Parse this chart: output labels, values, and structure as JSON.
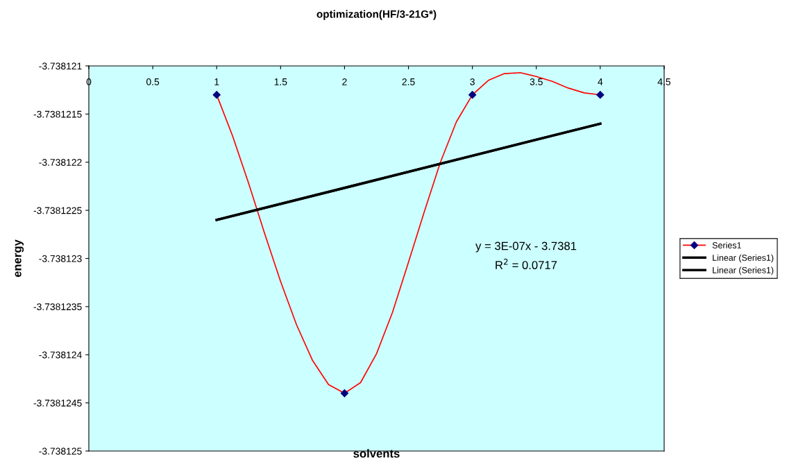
{
  "chart_data": {
    "type": "line",
    "title": "optimization(HF/3-21G*)",
    "xlabel": "solvents",
    "ylabel": "energy",
    "xlim": [
      0,
      4.5
    ],
    "xticks": [
      0,
      0.5,
      1,
      1.5,
      2,
      2.5,
      3,
      3.5,
      4,
      4.5
    ],
    "ylim": [
      -3.738125,
      -3.738121
    ],
    "yticks": [
      -3.738125,
      -3.7381245,
      -3.738124,
      -3.7381235,
      -3.738123,
      -3.7381225,
      -3.738122,
      -3.7381215,
      -3.738121
    ],
    "series": [
      {
        "name": "Series1",
        "color": "#ff0000",
        "x": [
          1,
          1.125,
          1.25,
          1.375,
          1.5,
          1.625,
          1.75,
          1.875,
          2,
          2.125,
          2.25,
          2.375,
          2.5,
          2.625,
          2.75,
          2.875,
          3,
          3.125,
          3.25,
          3.375,
          3.5,
          3.625,
          3.75,
          3.875,
          4
        ],
        "values": [
          -3.7381213,
          -3.73812173,
          -3.73812222,
          -3.73812274,
          -3.73812324,
          -3.73812369,
          -3.73812406,
          -3.73812431,
          -3.7381244,
          -3.73812429,
          -3.73812399,
          -3.73812356,
          -3.73812304,
          -3.73812251,
          -3.738122,
          -3.73812158,
          -3.7381213,
          -3.73812115,
          -3.73812108,
          -3.73812107,
          -3.73812111,
          -3.73812116,
          -3.73812123,
          -3.73812128,
          -3.7381213
        ]
      },
      {
        "type": "scatter",
        "color": "#000080",
        "x": [
          1,
          2,
          3,
          4
        ],
        "values": [
          -3.7381213,
          -3.7381244,
          -3.7381213,
          -3.7381213
        ],
        "marker": "diamond"
      },
      {
        "name": "Linear (Series1)",
        "color": "#000000",
        "x": [
          1,
          4
        ],
        "values": [
          -3.7381226,
          -3.7381216
        ]
      },
      {
        "name": "Linear (Series1)",
        "color": "#000000",
        "x": [
          1,
          4
        ],
        "values": [
          -3.7381226,
          -3.7381216
        ]
      }
    ],
    "annotations": [
      "y = 3E-07x - 3.7381",
      "R$^{2}$ = 0.0717"
    ],
    "legend": "right",
    "grid": false
  }
}
